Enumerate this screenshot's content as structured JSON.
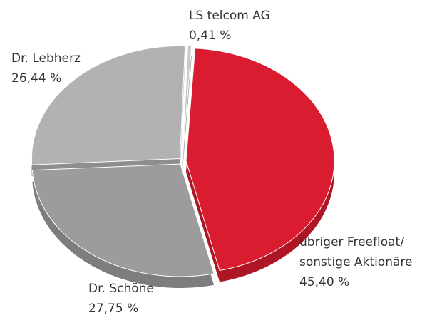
{
  "chart_data": {
    "type": "pie",
    "categories": [
      [
        "LS telcom AG"
      ],
      [
        "übriger Freefloat/",
        "sonstige Aktionäre"
      ],
      [
        "Dr. Schöne"
      ],
      [
        "Dr. Lebherz"
      ]
    ],
    "values": [
      0.41,
      45.4,
      27.75,
      26.44
    ],
    "value_labels": [
      "0,41 %",
      "45,40 %",
      "27,75 %",
      "26,44 %"
    ],
    "colors": [
      "#c9c9c9",
      "#da1c30",
      "#9c9c9c",
      "#b1b2b1"
    ]
  }
}
